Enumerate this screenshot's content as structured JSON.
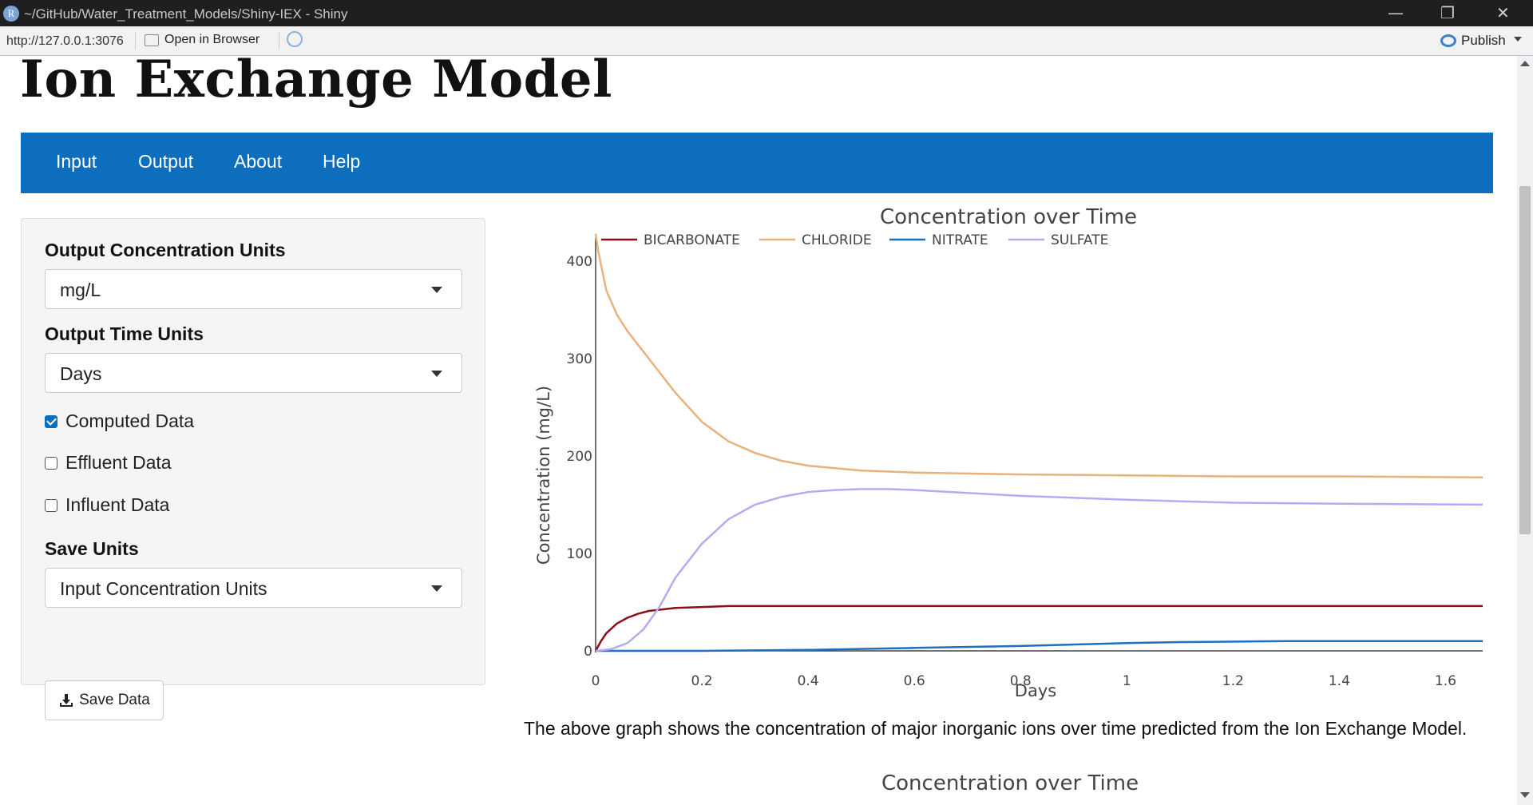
{
  "window": {
    "title": "~/GitHub/Water_Treatment_Models/Shiny-IEX - Shiny",
    "logo_letter": "R",
    "minimize_glyph": "—",
    "restore_glyph": "❐",
    "close_glyph": "✕"
  },
  "toolbar": {
    "url": "http://127.0.0.1:3076",
    "open_browser": "Open in Browser",
    "publish": "Publish"
  },
  "app": {
    "title": "Ion Exchange Model",
    "nav": [
      "Input",
      "Output",
      "About",
      "Help"
    ]
  },
  "sidebar": {
    "conc_units_label": "Output Concentration Units",
    "conc_units_value": "mg/L",
    "time_units_label": "Output Time Units",
    "time_units_value": "Days",
    "checkboxes": [
      {
        "label": "Computed Data",
        "checked": true
      },
      {
        "label": "Effluent Data",
        "checked": false
      },
      {
        "label": "Influent Data",
        "checked": false
      }
    ],
    "save_units_label": "Save Units",
    "save_units_value": "Input Concentration Units",
    "save_button": "Save Data",
    "save_icon": "download-icon"
  },
  "caption": "The above graph shows the concentration of major inorganic ions over time predicted from the Ion Exchange Model.",
  "plot2_title": "Concentration over Time",
  "chart_data": {
    "type": "line",
    "title": "Concentration over Time",
    "xlabel": "Days",
    "ylabel": "Concentration (mg/L)",
    "xlim": [
      0,
      1.67
    ],
    "ylim": [
      0,
      440
    ],
    "xticks": [
      0,
      0.2,
      0.4,
      0.6,
      0.8,
      1,
      1.2,
      1.4,
      1.6
    ],
    "xtick_labels": [
      "0",
      "0.2",
      "0.4",
      "0.6",
      "0.8",
      "1",
      "1.2",
      "1.4",
      "1.6"
    ],
    "yticks": [
      0,
      100,
      200,
      300,
      400
    ],
    "legend_position": "top-left, horizontal",
    "grid": false,
    "series": [
      {
        "name": "BICARBONATE",
        "color": "#8b0f14",
        "x": [
          0,
          0.01,
          0.02,
          0.04,
          0.06,
          0.08,
          0.1,
          0.15,
          0.2,
          0.25,
          0.4,
          0.6,
          1.0,
          1.4,
          1.67
        ],
        "y": [
          0,
          10,
          18,
          28,
          34,
          38,
          41,
          44,
          45,
          46,
          46,
          46,
          46,
          46,
          46
        ]
      },
      {
        "name": "CHLORIDE",
        "color": "#e8b27c",
        "x": [
          0,
          0.005,
          0.02,
          0.04,
          0.06,
          0.1,
          0.15,
          0.2,
          0.25,
          0.3,
          0.35,
          0.4,
          0.5,
          0.6,
          0.8,
          1.0,
          1.2,
          1.4,
          1.67
        ],
        "y": [
          428,
          410,
          370,
          345,
          328,
          300,
          265,
          235,
          215,
          203,
          195,
          190,
          185,
          183,
          181,
          180,
          179,
          179,
          178
        ]
      },
      {
        "name": "NITRATE",
        "color": "#1f6fbf",
        "x": [
          0,
          0.2,
          0.4,
          0.6,
          0.8,
          1.0,
          1.1,
          1.3,
          1.5,
          1.67
        ],
        "y": [
          0,
          0,
          1,
          3,
          5,
          8,
          9,
          10,
          10,
          10
        ]
      },
      {
        "name": "SULFATE",
        "color": "#b8a9f5",
        "x": [
          0,
          0.03,
          0.06,
          0.09,
          0.12,
          0.15,
          0.2,
          0.25,
          0.3,
          0.35,
          0.4,
          0.45,
          0.5,
          0.55,
          0.6,
          0.7,
          0.8,
          1.0,
          1.2,
          1.4,
          1.67
        ],
        "y": [
          0,
          2,
          8,
          22,
          45,
          75,
          110,
          135,
          150,
          158,
          163,
          165,
          166,
          166,
          165,
          162,
          159,
          155,
          152,
          151,
          150
        ]
      }
    ]
  }
}
